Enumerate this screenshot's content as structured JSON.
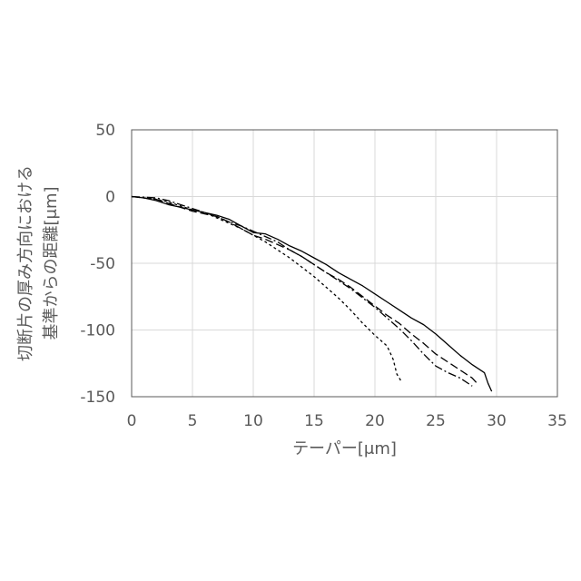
{
  "chart_data": {
    "type": "line",
    "xlabel": "テーパー[μm]",
    "ylabel_lines": [
      "切断片の厚み方向における",
      "基準からの距離[μm]"
    ],
    "xlim": [
      0,
      35
    ],
    "ylim": [
      -150,
      50
    ],
    "xticks": [
      0,
      5,
      10,
      15,
      20,
      25,
      30,
      35
    ],
    "yticks": [
      50,
      0,
      -50,
      -100,
      -150
    ],
    "grid": true,
    "legend": "none",
    "series": [
      {
        "style": "solid",
        "points": [
          [
            0,
            0
          ],
          [
            1,
            -1
          ],
          [
            2,
            -3
          ],
          [
            3,
            -6
          ],
          [
            4,
            -8
          ],
          [
            5,
            -10
          ],
          [
            6,
            -12
          ],
          [
            7,
            -14
          ],
          [
            8,
            -17
          ],
          [
            9,
            -22
          ],
          [
            10,
            -27
          ],
          [
            11,
            -28
          ],
          [
            12,
            -32
          ],
          [
            13,
            -37
          ],
          [
            14,
            -41
          ],
          [
            15,
            -46
          ],
          [
            16,
            -51
          ],
          [
            17,
            -57
          ],
          [
            18,
            -62
          ],
          [
            19,
            -67
          ],
          [
            20,
            -73
          ],
          [
            21,
            -79
          ],
          [
            22,
            -85
          ],
          [
            23,
            -91
          ],
          [
            24,
            -96
          ],
          [
            25,
            -103
          ],
          [
            26,
            -111
          ],
          [
            27,
            -119
          ],
          [
            28,
            -126
          ],
          [
            29,
            -132
          ],
          [
            29.3,
            -140
          ],
          [
            29.6,
            -146
          ]
        ]
      },
      {
        "style": "long-dash",
        "points": [
          [
            0,
            0
          ],
          [
            2,
            -2
          ],
          [
            3,
            -5
          ],
          [
            4,
            -8
          ],
          [
            5,
            -11
          ],
          [
            6,
            -13
          ],
          [
            7,
            -15
          ],
          [
            8,
            -19
          ],
          [
            9,
            -24
          ],
          [
            10,
            -29
          ],
          [
            11,
            -32
          ],
          [
            12,
            -36
          ],
          [
            13,
            -40
          ],
          [
            14,
            -45
          ],
          [
            15,
            -51
          ],
          [
            16,
            -57
          ],
          [
            17,
            -62
          ],
          [
            18,
            -68
          ],
          [
            19,
            -75
          ],
          [
            20,
            -82
          ],
          [
            21,
            -89
          ],
          [
            22,
            -95
          ],
          [
            23,
            -103
          ],
          [
            24,
            -110
          ],
          [
            25,
            -118
          ],
          [
            26,
            -124
          ],
          [
            27,
            -130
          ],
          [
            28,
            -136
          ],
          [
            28.5,
            -141
          ]
        ]
      },
      {
        "style": "dash-dot",
        "points": [
          [
            0,
            0
          ],
          [
            2,
            -1
          ],
          [
            3,
            -3
          ],
          [
            4,
            -6
          ],
          [
            5,
            -9
          ],
          [
            6,
            -12
          ],
          [
            7,
            -15
          ],
          [
            8,
            -19
          ],
          [
            9,
            -22
          ],
          [
            10,
            -26
          ],
          [
            11,
            -30
          ],
          [
            12,
            -34
          ],
          [
            13,
            -40
          ],
          [
            14,
            -45
          ],
          [
            15,
            -51
          ],
          [
            16,
            -57
          ],
          [
            17,
            -63
          ],
          [
            18,
            -69
          ],
          [
            19,
            -76
          ],
          [
            20,
            -83
          ],
          [
            21,
            -91
          ],
          [
            22,
            -99
          ],
          [
            23,
            -108
          ],
          [
            24,
            -118
          ],
          [
            25,
            -127
          ],
          [
            26,
            -132
          ],
          [
            27,
            -136
          ],
          [
            28,
            -142
          ]
        ]
      },
      {
        "style": "short-dash",
        "points": [
          [
            0,
            0
          ],
          [
            1,
            -1
          ],
          [
            2,
            -2
          ],
          [
            3,
            -4
          ],
          [
            4,
            -7
          ],
          [
            5,
            -10
          ],
          [
            6,
            -12
          ],
          [
            7,
            -16
          ],
          [
            8,
            -20
          ],
          [
            9,
            -24
          ],
          [
            10,
            -29
          ],
          [
            11,
            -34
          ],
          [
            12,
            -40
          ],
          [
            13,
            -46
          ],
          [
            14,
            -53
          ],
          [
            15,
            -60
          ],
          [
            16,
            -68
          ],
          [
            17,
            -76
          ],
          [
            18,
            -85
          ],
          [
            19,
            -95
          ],
          [
            20,
            -104
          ],
          [
            21,
            -112
          ],
          [
            21.5,
            -122
          ],
          [
            21.8,
            -133
          ],
          [
            22.2,
            -139
          ]
        ]
      }
    ]
  }
}
